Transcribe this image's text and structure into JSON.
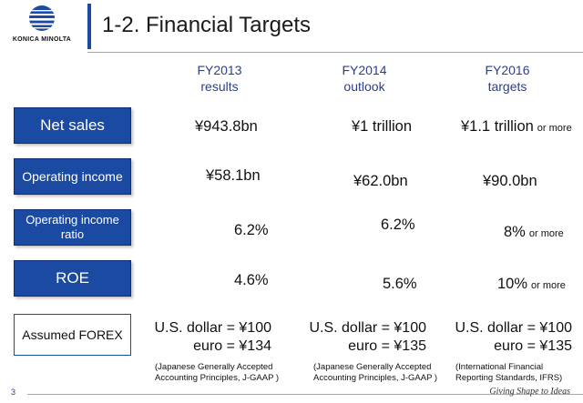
{
  "brand": {
    "logo_text": "KONICA MINOLTA",
    "accent_color": "#1b4aa3"
  },
  "slide": {
    "title": "1-2. Financial Targets",
    "page_number": "3",
    "tagline": "Giving Shape to Ideas"
  },
  "columns": [
    {
      "line1": "FY2013",
      "line2": "results"
    },
    {
      "line1": "FY2014",
      "line2": "outlook"
    },
    {
      "line1": "FY2016",
      "line2": "targets"
    }
  ],
  "rows": {
    "net_sales": {
      "label": "Net sales",
      "values": [
        "¥943.8bn",
        "¥1 trillion",
        "¥1.1 trillion"
      ],
      "suffix": "or more"
    },
    "operating_income": {
      "label": "Operating income",
      "values": [
        "¥58.1bn",
        "¥62.0bn",
        "¥90.0bn"
      ]
    },
    "operating_income_ratio": {
      "label_line1": "Operating income",
      "label_line2": "ratio",
      "values": [
        "6.2%",
        "6.2%",
        "8%"
      ],
      "suffix": "or more"
    },
    "roe": {
      "label": "ROE",
      "values": [
        "4.6%",
        "5.6%",
        "10%"
      ],
      "suffix": "or more"
    },
    "forex": {
      "label": "Assumed FOREX",
      "usd": [
        "U.S. dollar = ¥100",
        "U.S. dollar = ¥100",
        "U.S. dollar = ¥100"
      ],
      "euro": [
        "euro = ¥134",
        "euro = ¥135",
        "euro = ¥135"
      ]
    }
  },
  "notes": [
    {
      "line1": "(Japanese Generally Accepted",
      "line2": "Accounting Principles, J-GAAP )"
    },
    {
      "line1": "(Japanese Generally Accepted",
      "line2": "Accounting Principles, J-GAAP )"
    },
    {
      "line1": "(International Financial",
      "line2": "Reporting Standards, IFRS)"
    }
  ]
}
